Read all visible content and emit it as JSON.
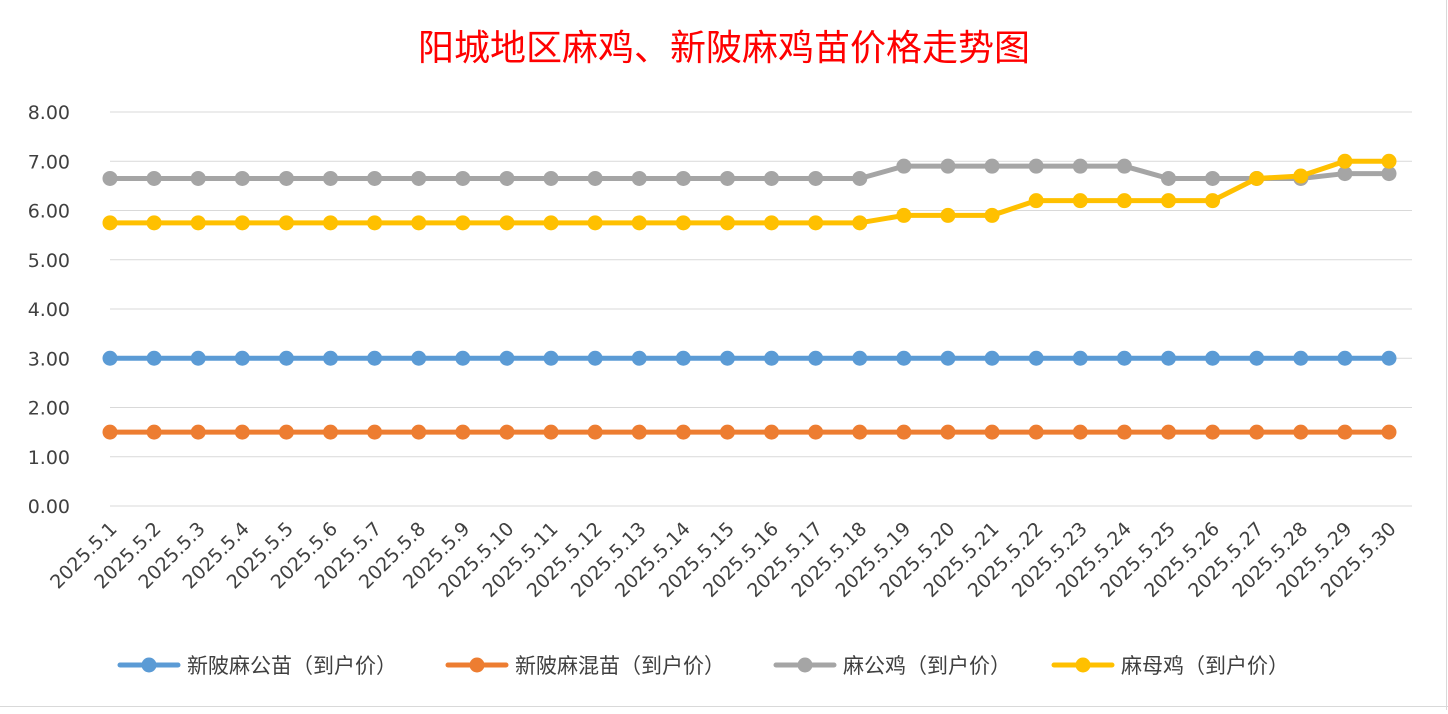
{
  "chart_data": {
    "type": "line",
    "title": "阳城地区麻鸡、新陂麻鸡苗价格走势图",
    "xlabel": "",
    "ylabel": "",
    "ylim": [
      0,
      8
    ],
    "yticks": [
      "0.00",
      "1.00",
      "2.00",
      "3.00",
      "4.00",
      "5.00",
      "6.00",
      "7.00",
      "8.00"
    ],
    "grid": true,
    "legend_position": "bottom",
    "categories": [
      "2025.5.1",
      "2025.5.2",
      "2025.5.3",
      "2025.5.4",
      "2025.5.5",
      "2025.5.6",
      "2025.5.7",
      "2025.5.8",
      "2025.5.9",
      "2025.5.10",
      "2025.5.11",
      "2025.5.12",
      "2025.5.13",
      "2025.5.14",
      "2025.5.15",
      "2025.5.16",
      "2025.5.17",
      "2025.5.18",
      "2025.5.19",
      "2025.5.20",
      "2025.5.21",
      "2025.5.22",
      "2025.5.23",
      "2025.5.24",
      "2025.5.25",
      "2025.5.26",
      "2025.5.27",
      "2025.5.28",
      "2025.5.29",
      "2025.5.30"
    ],
    "series": [
      {
        "name": "新陂麻公苗（到户价）",
        "color": "#5b9bd5",
        "values": [
          3,
          3,
          3,
          3,
          3,
          3,
          3,
          3,
          3,
          3,
          3,
          3,
          3,
          3,
          3,
          3,
          3,
          3,
          3,
          3,
          3,
          3,
          3,
          3,
          3,
          3,
          3,
          3,
          3,
          3
        ]
      },
      {
        "name": "新陂麻混苗（到户价）",
        "color": "#ed7d31",
        "values": [
          1.5,
          1.5,
          1.5,
          1.5,
          1.5,
          1.5,
          1.5,
          1.5,
          1.5,
          1.5,
          1.5,
          1.5,
          1.5,
          1.5,
          1.5,
          1.5,
          1.5,
          1.5,
          1.5,
          1.5,
          1.5,
          1.5,
          1.5,
          1.5,
          1.5,
          1.5,
          1.5,
          1.5,
          1.5,
          1.5
        ]
      },
      {
        "name": "麻公鸡（到户价）",
        "color": "#a5a5a5",
        "values": [
          6.65,
          6.65,
          6.65,
          6.65,
          6.65,
          6.65,
          6.65,
          6.65,
          6.65,
          6.65,
          6.65,
          6.65,
          6.65,
          6.65,
          6.65,
          6.65,
          6.65,
          6.65,
          6.9,
          6.9,
          6.9,
          6.9,
          6.9,
          6.9,
          6.65,
          6.65,
          6.65,
          6.65,
          6.75,
          6.75
        ]
      },
      {
        "name": "麻母鸡（到户价）",
        "color": "#ffc000",
        "values": [
          5.75,
          5.75,
          5.75,
          5.75,
          5.75,
          5.75,
          5.75,
          5.75,
          5.75,
          5.75,
          5.75,
          5.75,
          5.75,
          5.75,
          5.75,
          5.75,
          5.75,
          5.75,
          5.9,
          5.9,
          5.9,
          6.2,
          6.2,
          6.2,
          6.2,
          6.2,
          6.65,
          6.7,
          7.0,
          7.0
        ]
      }
    ]
  }
}
